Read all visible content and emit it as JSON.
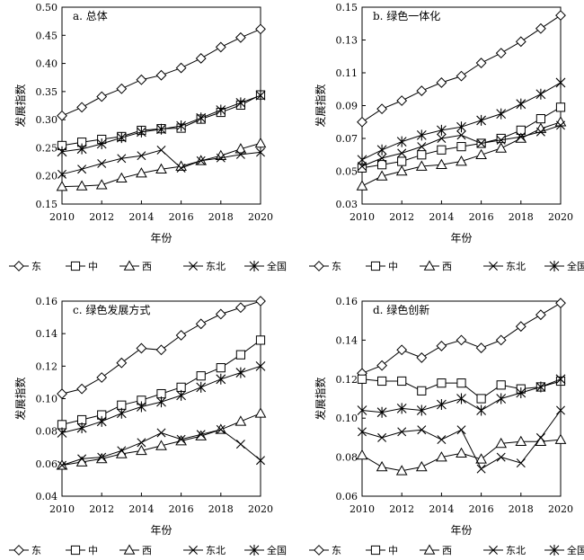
{
  "chart_data": [
    {
      "type": "line",
      "title": "a. 总体",
      "xlabel": "年份",
      "ylabel": "发展指数",
      "x": [
        2010,
        2011,
        2012,
        2013,
        2014,
        2015,
        2016,
        2017,
        2018,
        2019,
        2020
      ],
      "xticks": [
        "2010",
        "2012",
        "2014",
        "2016",
        "2018",
        "2020"
      ],
      "ylim": [
        0.15,
        0.5
      ],
      "yticks": [
        "0.15",
        "0.20",
        "0.25",
        "0.30",
        "0.35",
        "0.40",
        "0.45",
        "0.50"
      ],
      "series": [
        {
          "name": "东",
          "marker": "diamond",
          "values": [
            0.307,
            0.322,
            0.341,
            0.355,
            0.371,
            0.379,
            0.392,
            0.409,
            0.429,
            0.446,
            0.461
          ]
        },
        {
          "name": "中",
          "marker": "square",
          "values": [
            0.254,
            0.26,
            0.265,
            0.27,
            0.281,
            0.284,
            0.285,
            0.301,
            0.313,
            0.326,
            0.344
          ]
        },
        {
          "name": "西",
          "marker": "triangle",
          "values": [
            0.181,
            0.182,
            0.184,
            0.196,
            0.205,
            0.212,
            0.217,
            0.227,
            0.236,
            0.248,
            0.258
          ]
        },
        {
          "name": "东北",
          "marker": "x",
          "values": [
            0.203,
            0.212,
            0.222,
            0.231,
            0.236,
            0.246,
            0.214,
            0.227,
            0.232,
            0.238,
            0.242
          ]
        },
        {
          "name": "全国",
          "marker": "star",
          "values": [
            0.243,
            0.248,
            0.257,
            0.268,
            0.278,
            0.283,
            0.289,
            0.303,
            0.317,
            0.33,
            0.343
          ]
        }
      ]
    },
    {
      "type": "line",
      "title": "b. 绿色一体化",
      "xlabel": "年份",
      "ylabel": "发展指数",
      "x": [
        2010,
        2011,
        2012,
        2013,
        2014,
        2015,
        2016,
        2017,
        2018,
        2019,
        2020
      ],
      "xticks": [
        "2010",
        "2012",
        "2014",
        "2016",
        "2018",
        "2020"
      ],
      "ylim": [
        0.03,
        0.15
      ],
      "yticks": [
        "0.03",
        "0.05",
        "0.07",
        "0.09",
        "0.11",
        "0.13",
        "0.15"
      ],
      "series": [
        {
          "name": "东",
          "marker": "diamond",
          "values": [
            0.08,
            0.088,
            0.093,
            0.099,
            0.104,
            0.108,
            0.116,
            0.122,
            0.129,
            0.137,
            0.145
          ]
        },
        {
          "name": "中",
          "marker": "square",
          "values": [
            0.052,
            0.054,
            0.056,
            0.06,
            0.063,
            0.065,
            0.067,
            0.07,
            0.075,
            0.082,
            0.089
          ]
        },
        {
          "name": "西",
          "marker": "triangle",
          "values": [
            0.041,
            0.047,
            0.05,
            0.053,
            0.054,
            0.056,
            0.06,
            0.064,
            0.07,
            0.076,
            0.08
          ]
        },
        {
          "name": "东北",
          "marker": "x",
          "values": [
            0.053,
            0.058,
            0.061,
            0.065,
            0.07,
            0.072,
            0.067,
            0.069,
            0.071,
            0.074,
            0.078
          ]
        },
        {
          "name": "全国",
          "marker": "star",
          "values": [
            0.057,
            0.063,
            0.068,
            0.072,
            0.075,
            0.077,
            0.081,
            0.085,
            0.091,
            0.097,
            0.104
          ]
        }
      ]
    },
    {
      "type": "line",
      "title": "c. 绿色发展方式",
      "xlabel": "年份",
      "ylabel": "发展指数",
      "x": [
        2010,
        2011,
        2012,
        2013,
        2014,
        2015,
        2016,
        2017,
        2018,
        2019,
        2020
      ],
      "xticks": [
        "2010",
        "2012",
        "2014",
        "2016",
        "2018",
        "2020"
      ],
      "ylim": [
        0.04,
        0.16
      ],
      "yticks": [
        "0.04",
        "0.06",
        "0.08",
        "0.10",
        "0.12",
        "0.14",
        "0.16"
      ],
      "series": [
        {
          "name": "东",
          "marker": "diamond",
          "values": [
            0.103,
            0.106,
            0.113,
            0.122,
            0.131,
            0.13,
            0.139,
            0.146,
            0.152,
            0.156,
            0.16
          ]
        },
        {
          "name": "中",
          "marker": "square",
          "values": [
            0.084,
            0.087,
            0.09,
            0.096,
            0.099,
            0.103,
            0.107,
            0.114,
            0.119,
            0.127,
            0.136
          ]
        },
        {
          "name": "西",
          "marker": "triangle",
          "values": [
            0.059,
            0.061,
            0.063,
            0.066,
            0.068,
            0.071,
            0.074,
            0.077,
            0.081,
            0.086,
            0.091
          ]
        },
        {
          "name": "东北",
          "marker": "x",
          "values": [
            0.059,
            0.063,
            0.064,
            0.068,
            0.073,
            0.079,
            0.075,
            0.078,
            0.081,
            0.072,
            0.062
          ]
        },
        {
          "name": "全国",
          "marker": "star",
          "values": [
            0.079,
            0.082,
            0.086,
            0.091,
            0.095,
            0.098,
            0.102,
            0.107,
            0.112,
            0.116,
            0.12
          ]
        }
      ]
    },
    {
      "type": "line",
      "title": "d. 绿色创新",
      "xlabel": "年份",
      "ylabel": "发展指数",
      "x": [
        2010,
        2011,
        2012,
        2013,
        2014,
        2015,
        2016,
        2017,
        2018,
        2019,
        2020
      ],
      "xticks": [
        "2010",
        "2012",
        "2014",
        "2016",
        "2018",
        "2020"
      ],
      "ylim": [
        0.06,
        0.16
      ],
      "yticks": [
        "0.06",
        "0.08",
        "0.10",
        "0.12",
        "0.14",
        "0.16"
      ],
      "series": [
        {
          "name": "东",
          "marker": "diamond",
          "values": [
            0.123,
            0.127,
            0.135,
            0.131,
            0.137,
            0.14,
            0.136,
            0.14,
            0.147,
            0.153,
            0.159
          ]
        },
        {
          "name": "中",
          "marker": "square",
          "values": [
            0.12,
            0.119,
            0.119,
            0.114,
            0.118,
            0.118,
            0.11,
            0.117,
            0.115,
            0.116,
            0.119
          ]
        },
        {
          "name": "西",
          "marker": "triangle",
          "values": [
            0.081,
            0.075,
            0.073,
            0.075,
            0.08,
            0.082,
            0.079,
            0.087,
            0.088,
            0.088,
            0.089
          ]
        },
        {
          "name": "东北",
          "marker": "x",
          "values": [
            0.093,
            0.09,
            0.093,
            0.094,
            0.089,
            0.094,
            0.074,
            0.08,
            0.077,
            0.09,
            0.104
          ]
        },
        {
          "name": "全国",
          "marker": "star",
          "values": [
            0.104,
            0.103,
            0.105,
            0.104,
            0.107,
            0.11,
            0.104,
            0.11,
            0.113,
            0.116,
            0.12
          ]
        }
      ]
    }
  ]
}
